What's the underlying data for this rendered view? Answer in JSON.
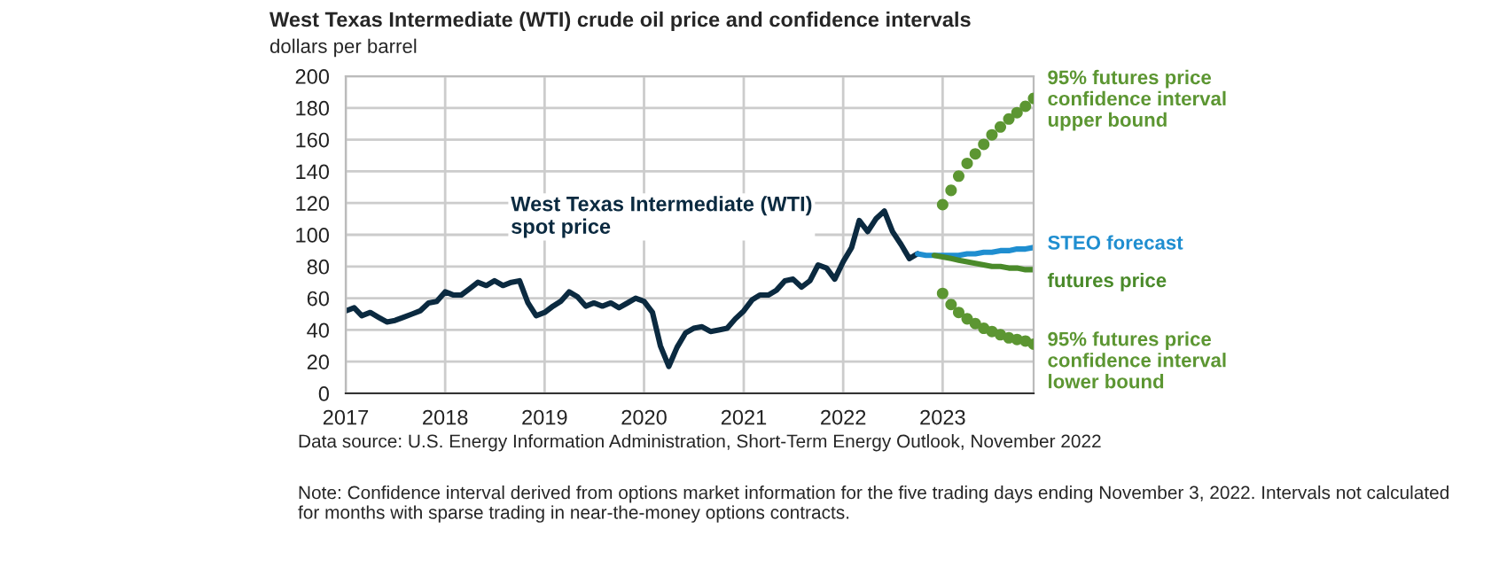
{
  "chart_data": {
    "type": "line",
    "title": "West Texas Intermediate (WTI) crude oil price and confidence intervals",
    "ylabel": "dollars per barrel",
    "xlim": [
      "2017-01",
      "2023-12"
    ],
    "ylim": [
      0,
      200
    ],
    "yticks": [
      0,
      20,
      40,
      60,
      80,
      100,
      120,
      140,
      160,
      180,
      200
    ],
    "xticks": [
      {
        "value": "2017-01",
        "label": "2017"
      },
      {
        "value": "2018-01",
        "label": "2018"
      },
      {
        "value": "2019-01",
        "label": "2019"
      },
      {
        "value": "2020-01",
        "label": "2020"
      },
      {
        "value": "2021-01",
        "label": "2021"
      },
      {
        "value": "2022-01",
        "label": "2022"
      },
      {
        "value": "2023-01",
        "label": "2023"
      }
    ],
    "grid": true,
    "legend": false,
    "series": [
      {
        "name": "West Texas Intermediate (WTI) spot price",
        "color": "#0b2a40",
        "line_style": "solid",
        "marker": "none",
        "x": [
          "2017-01",
          "2017-02",
          "2017-03",
          "2017-04",
          "2017-05",
          "2017-06",
          "2017-07",
          "2017-08",
          "2017-09",
          "2017-10",
          "2017-11",
          "2017-12",
          "2018-01",
          "2018-02",
          "2018-03",
          "2018-04",
          "2018-05",
          "2018-06",
          "2018-07",
          "2018-08",
          "2018-09",
          "2018-10",
          "2018-11",
          "2018-12",
          "2019-01",
          "2019-02",
          "2019-03",
          "2019-04",
          "2019-05",
          "2019-06",
          "2019-07",
          "2019-08",
          "2019-09",
          "2019-10",
          "2019-11",
          "2019-12",
          "2020-01",
          "2020-02",
          "2020-03",
          "2020-04",
          "2020-05",
          "2020-06",
          "2020-07",
          "2020-08",
          "2020-09",
          "2020-10",
          "2020-11",
          "2020-12",
          "2021-01",
          "2021-02",
          "2021-03",
          "2021-04",
          "2021-05",
          "2021-06",
          "2021-07",
          "2021-08",
          "2021-09",
          "2021-10",
          "2021-11",
          "2021-12",
          "2022-01",
          "2022-02",
          "2022-03",
          "2022-04",
          "2022-05",
          "2022-06",
          "2022-07",
          "2022-08",
          "2022-09",
          "2022-10"
        ],
        "values": [
          52,
          54,
          49,
          51,
          48,
          45,
          46,
          48,
          50,
          52,
          57,
          58,
          64,
          62,
          62,
          66,
          70,
          68,
          71,
          68,
          70,
          71,
          57,
          49,
          51,
          55,
          58,
          64,
          61,
          55,
          57,
          55,
          57,
          54,
          57,
          60,
          58,
          51,
          30,
          17,
          29,
          38,
          41,
          42,
          39,
          40,
          41,
          47,
          52,
          59,
          62,
          62,
          65,
          71,
          72,
          67,
          71,
          81,
          79,
          72,
          83,
          92,
          109,
          102,
          110,
          115,
          102,
          94,
          85,
          88
        ]
      },
      {
        "name": "STEO forecast",
        "color": "#1f8ed0",
        "line_style": "solid",
        "marker": "none",
        "x": [
          "2022-10",
          "2022-11",
          "2022-12",
          "2023-01",
          "2023-02",
          "2023-03",
          "2023-04",
          "2023-05",
          "2023-06",
          "2023-07",
          "2023-08",
          "2023-09",
          "2023-10",
          "2023-11",
          "2023-12"
        ],
        "values": [
          88,
          87,
          87,
          87,
          87,
          87,
          88,
          88,
          89,
          89,
          90,
          90,
          91,
          91,
          92
        ]
      },
      {
        "name": "futures price",
        "color": "#4a8a2a",
        "line_style": "solid",
        "marker": "none",
        "x": [
          "2022-12",
          "2023-01",
          "2023-02",
          "2023-03",
          "2023-04",
          "2023-05",
          "2023-06",
          "2023-07",
          "2023-08",
          "2023-09",
          "2023-10",
          "2023-11",
          "2023-12"
        ],
        "values": [
          87,
          86,
          85,
          84,
          83,
          82,
          81,
          80,
          80,
          79,
          79,
          78,
          78
        ]
      },
      {
        "name": "95% futures price confidence interval upper bound",
        "color": "#5c9632",
        "type": "scatter",
        "marker": "circle",
        "x": [
          "2023-01",
          "2023-02",
          "2023-03",
          "2023-04",
          "2023-05",
          "2023-06",
          "2023-07",
          "2023-08",
          "2023-09",
          "2023-10",
          "2023-11",
          "2023-12"
        ],
        "values": [
          119,
          128,
          137,
          145,
          151,
          157,
          163,
          168,
          173,
          177,
          181,
          186
        ]
      },
      {
        "name": "95% futures price confidence interval lower bound",
        "color": "#5c9632",
        "type": "scatter",
        "marker": "circle",
        "x": [
          "2023-01",
          "2023-02",
          "2023-03",
          "2023-04",
          "2023-05",
          "2023-06",
          "2023-07",
          "2023-08",
          "2023-09",
          "2023-10",
          "2023-11",
          "2023-12"
        ],
        "values": [
          63,
          56,
          51,
          47,
          44,
          41,
          39,
          37,
          35,
          34,
          33,
          31
        ]
      }
    ],
    "annotations": [
      "Data source: U.S. Energy Information Administration, Short-Term Energy Outlook, November 2022",
      "Note: Confidence interval derived from options market information for the five trading days ending November 3, 2022. Intervals not calculated for months with sparse trading in near-the-money options contracts."
    ]
  }
}
